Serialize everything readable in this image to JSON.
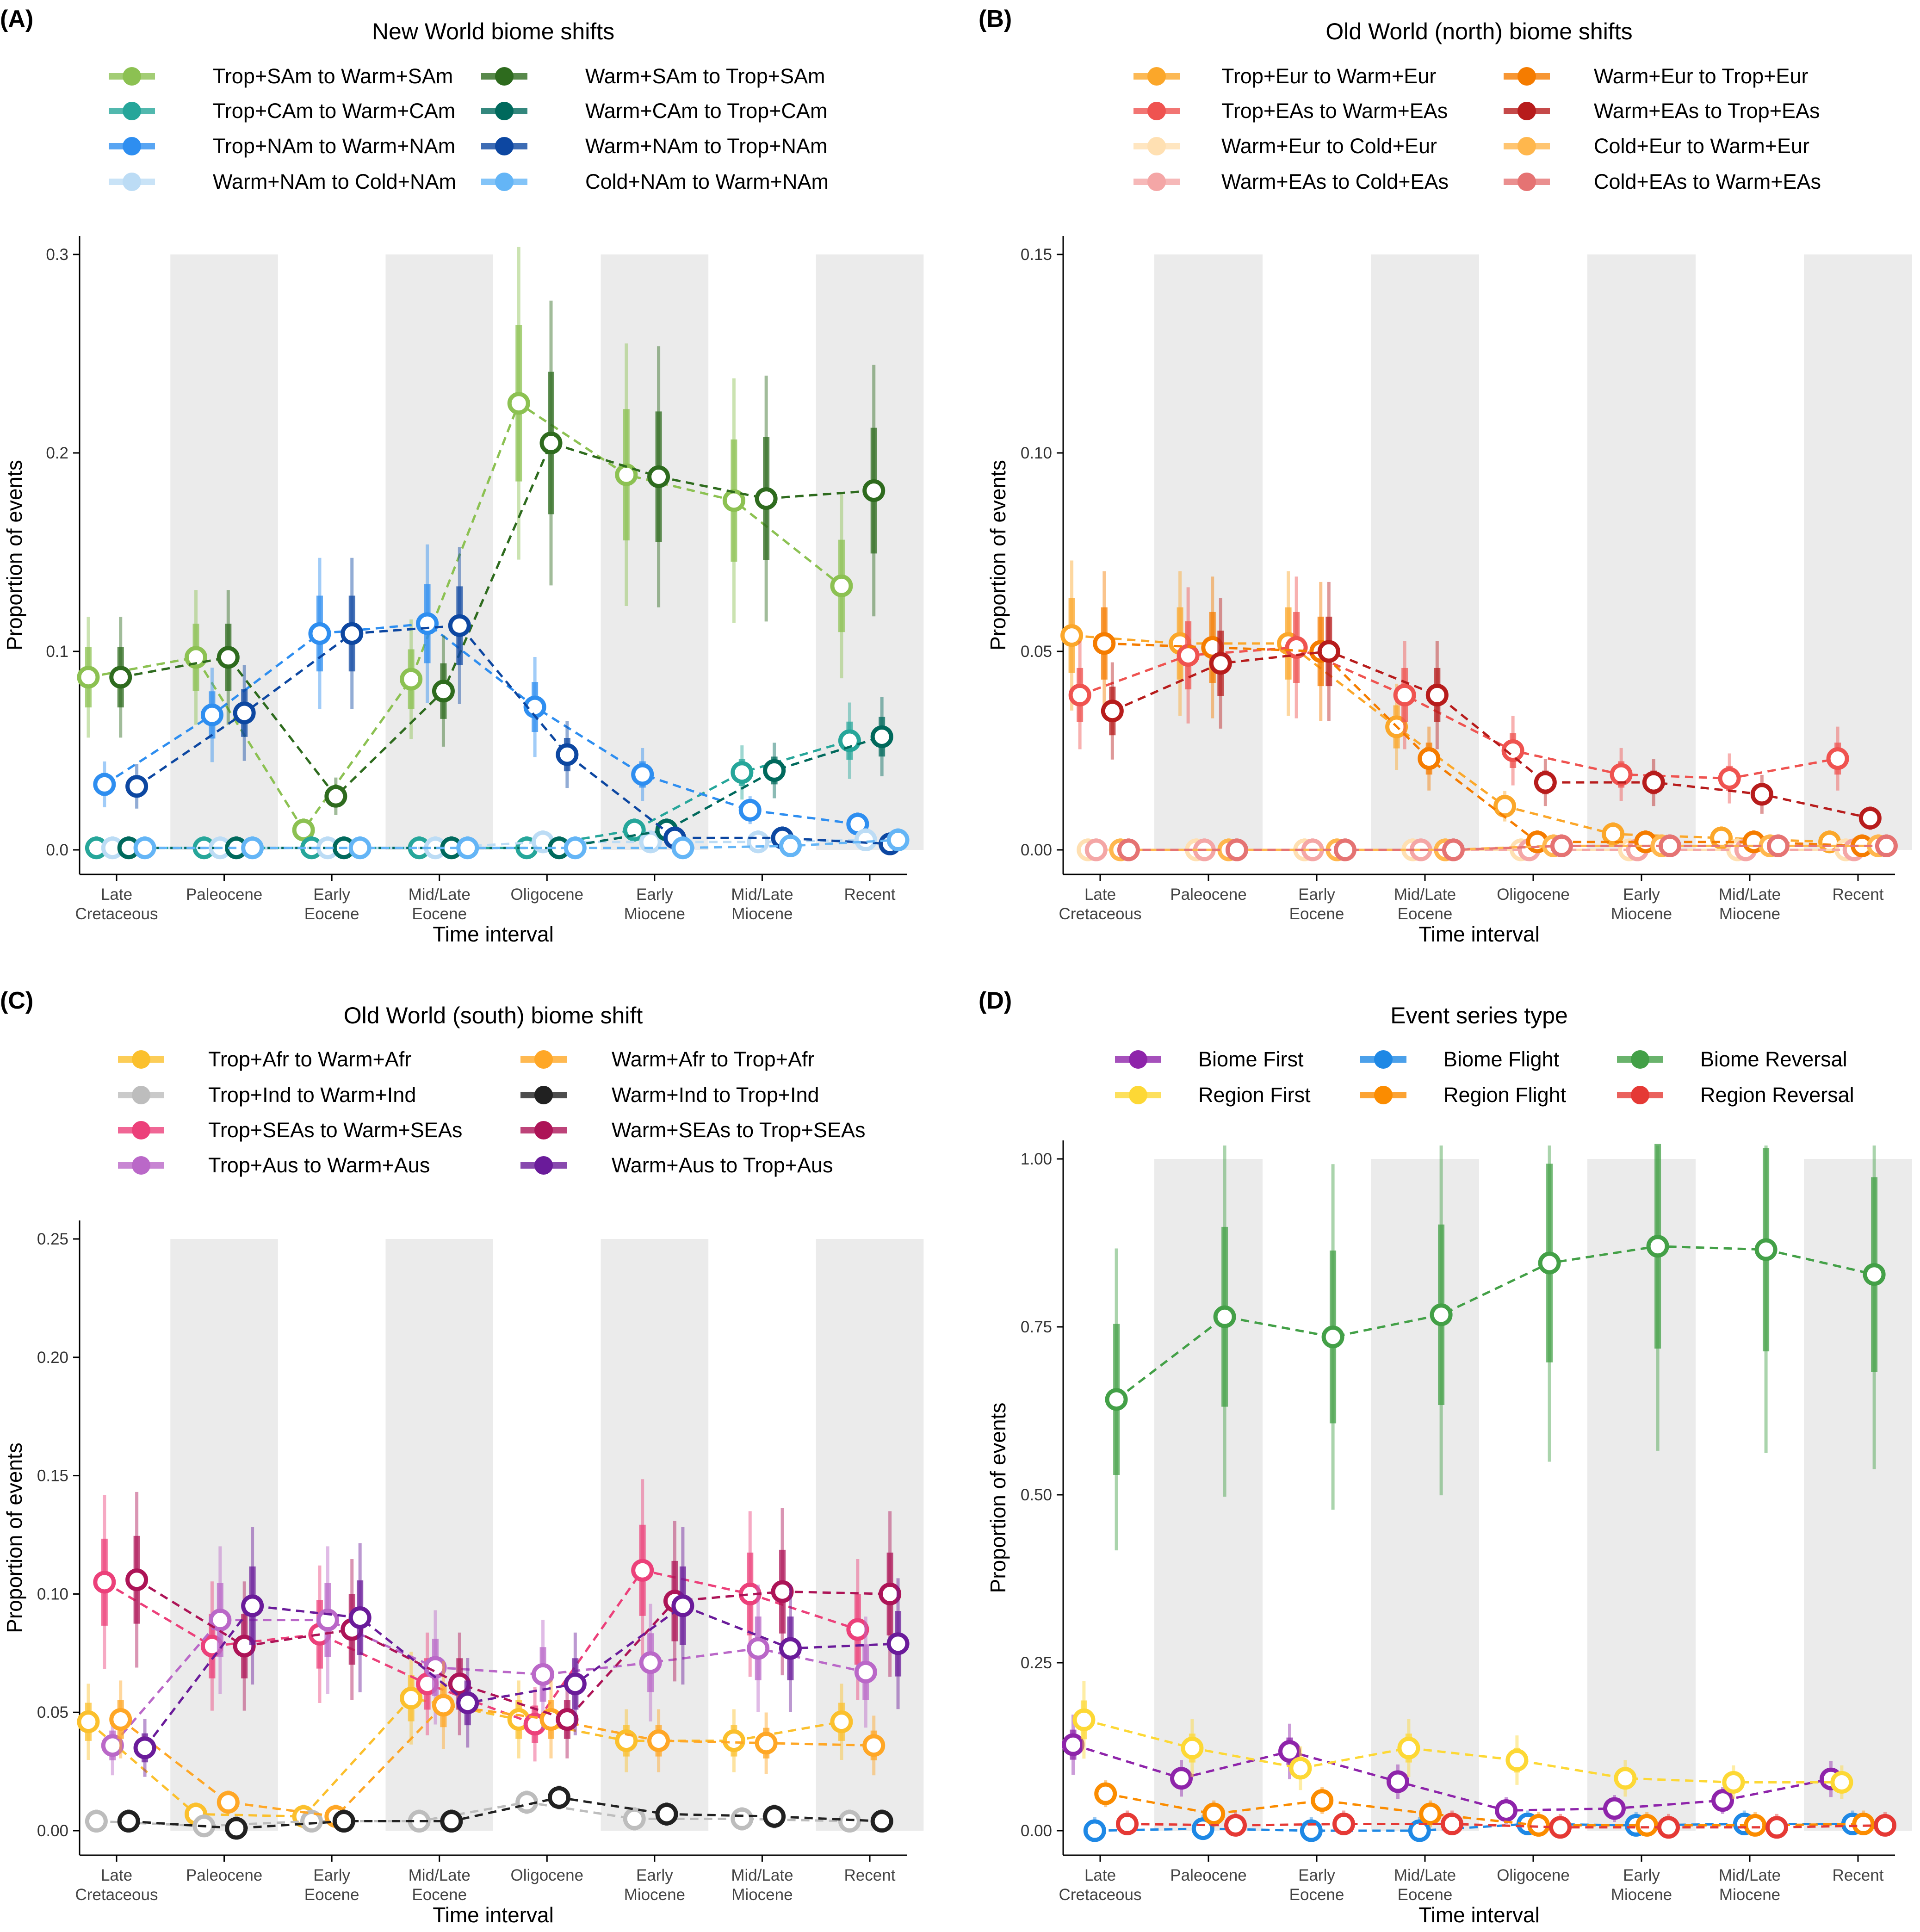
{
  "x_categories": [
    "Late Cretaceous",
    "Paleocene",
    "Early Eocene",
    "Mid/Late Eocene",
    "Oligocene",
    "Early Miocene",
    "Mid/Late Miocene",
    "Recent"
  ],
  "chart_data": [
    {
      "type": "line",
      "panel_label": "(A)",
      "title": "New World biome shifts",
      "xlabel": "Time interval",
      "ylabel": "Proportion of events",
      "ylim": [
        0,
        0.3
      ],
      "yticks": [
        "0.0",
        "0.1",
        "0.2",
        "0.3"
      ],
      "ytick_values": [
        0,
        0.1,
        0.2,
        0.3
      ],
      "legend_columns": 2,
      "categories": [
        "Late\nCretaceous",
        "Paleocene",
        "Early\nEocene",
        "Mid/Late\nEocene",
        "Oligocene",
        "Early\nMiocene",
        "Mid/Late\nMiocene",
        "Recent"
      ],
      "series": [
        {
          "name": "Trop+SAm to Warm+SAm",
          "color": "#8cc152",
          "values": [
            0.087,
            0.097,
            0.01,
            0.086,
            0.225,
            0.189,
            0.176,
            0.133
          ]
        },
        {
          "name": "Trop+CAm to Warm+CAm",
          "color": "#26a69a",
          "values": [
            0.001,
            0.001,
            0.001,
            0.001,
            0.001,
            0.01,
            0.039,
            0.055
          ]
        },
        {
          "name": "Trop+NAm to Warm+NAm",
          "color": "#2e8ef0",
          "values": [
            0.033,
            0.068,
            0.109,
            0.114,
            0.072,
            0.038,
            0.02,
            0.013
          ]
        },
        {
          "name": "Warm+NAm to Cold+NAm",
          "color": "#bcdcf5",
          "values": [
            0.001,
            0.001,
            0.001,
            0.001,
            0.004,
            0.004,
            0.004,
            0.005
          ]
        },
        {
          "name": "Warm+SAm to Trop+SAm",
          "color": "#2e6b1e",
          "values": [
            0.087,
            0.097,
            0.027,
            0.08,
            0.205,
            0.188,
            0.177,
            0.181
          ]
        },
        {
          "name": "Warm+CAm to Trop+CAm",
          "color": "#00695c",
          "values": [
            0.001,
            0.001,
            0.001,
            0.001,
            0.001,
            0.01,
            0.04,
            0.057
          ]
        },
        {
          "name": "Warm+NAm to Trop+NAm",
          "color": "#0d47a1",
          "values": [
            0.032,
            0.069,
            0.109,
            0.113,
            0.048,
            0.006,
            0.006,
            0.003
          ]
        },
        {
          "name": "Cold+NAm to Warm+NAm",
          "color": "#64b5f6",
          "values": [
            0.001,
            0.001,
            0.001,
            0.001,
            0.001,
            0.001,
            0.002,
            0.005
          ]
        }
      ]
    },
    {
      "type": "line",
      "panel_label": "(B)",
      "title": "Old World (north) biome shifts",
      "xlabel": "Time interval",
      "ylabel": "Proportion of events",
      "ylim": [
        0,
        0.15
      ],
      "yticks": [
        "0.00",
        "0.05",
        "0.10",
        "0.15"
      ],
      "ytick_values": [
        0,
        0.05,
        0.1,
        0.15
      ],
      "legend_columns": 2,
      "categories": [
        "Late\nCretaceous",
        "Paleocene",
        "Early\nEocene",
        "Mid/Late\nEocene",
        "Oligocene",
        "Early\nMiocene",
        "Mid/Late\nMiocene",
        "Recent"
      ],
      "series": [
        {
          "name": "Trop+Eur to Warm+Eur",
          "color": "#fba72a",
          "values": [
            0.054,
            0.052,
            0.052,
            0.031,
            0.011,
            0.004,
            0.003,
            0.002
          ]
        },
        {
          "name": "Trop+EAs to Warm+EAs",
          "color": "#ef5350",
          "values": [
            0.039,
            0.049,
            0.051,
            0.039,
            0.025,
            0.019,
            0.018,
            0.023
          ]
        },
        {
          "name": "Warm+Eur to Cold+Eur",
          "color": "#ffe0b2",
          "values": [
            0.0,
            0.0,
            0.0,
            0.0,
            0.0,
            0.0,
            0.0,
            0.0
          ]
        },
        {
          "name": "Warm+EAs to Cold+EAs",
          "color": "#f4a6a6",
          "values": [
            0.0,
            0.0,
            0.0,
            0.0,
            0.0,
            0.0,
            0.0,
            0.0
          ]
        },
        {
          "name": "Warm+Eur to Trop+Eur",
          "color": "#f57c00",
          "values": [
            0.052,
            0.051,
            0.05,
            0.023,
            0.002,
            0.002,
            0.002,
            0.001
          ]
        },
        {
          "name": "Warm+EAs to Trop+EAs",
          "color": "#b71c1c",
          "values": [
            0.035,
            0.047,
            0.05,
            0.039,
            0.017,
            0.017,
            0.014,
            0.008
          ]
        },
        {
          "name": "Cold+Eur to Warm+Eur",
          "color": "#ffb74d",
          "values": [
            0.0,
            0.0,
            0.0,
            0.0,
            0.001,
            0.001,
            0.001,
            0.001
          ]
        },
        {
          "name": "Cold+EAs to Warm+EAs",
          "color": "#e57373",
          "values": [
            0.0,
            0.0,
            0.0,
            0.0,
            0.001,
            0.001,
            0.001,
            0.001
          ]
        }
      ]
    },
    {
      "type": "line",
      "panel_label": "(C)",
      "title": "Old World (south) biome shift",
      "xlabel": "Time interval",
      "ylabel": "Proportion of events",
      "ylim": [
        0,
        0.25
      ],
      "yticks": [
        "0.00",
        "0.05",
        "0.10",
        "0.15",
        "0.20",
        "0.25"
      ],
      "ytick_values": [
        0,
        0.05,
        0.1,
        0.15,
        0.2,
        0.25
      ],
      "legend_columns": 2,
      "categories": [
        "Late\nCretaceous",
        "Paleocene",
        "Early\nEocene",
        "Mid/Late\nEocene",
        "Oligocene",
        "Early\nMiocene",
        "Mid/Late\nMiocene",
        "Recent"
      ],
      "series": [
        {
          "name": "Trop+Afr to Warm+Afr",
          "color": "#fbc02d",
          "values": [
            0.046,
            0.007,
            0.006,
            0.056,
            0.047,
            0.038,
            0.038,
            0.046
          ]
        },
        {
          "name": "Trop+Ind to Warm+Ind",
          "color": "#bdbdbd",
          "values": [
            0.004,
            0.002,
            0.004,
            0.004,
            0.012,
            0.005,
            0.005,
            0.004
          ]
        },
        {
          "name": "Trop+SEAs to Warm+SEAs",
          "color": "#ec407a",
          "values": [
            0.105,
            0.078,
            0.083,
            0.062,
            0.045,
            0.11,
            0.1,
            0.085
          ]
        },
        {
          "name": "Trop+Aus to Warm+Aus",
          "color": "#ba68c8",
          "values": [
            0.036,
            0.089,
            0.089,
            0.069,
            0.066,
            0.071,
            0.077,
            0.067
          ]
        },
        {
          "name": "Warm+Afr to Trop+Afr",
          "color": "#ffa726",
          "values": [
            0.047,
            0.012,
            0.006,
            0.053,
            0.047,
            0.038,
            0.037,
            0.036
          ]
        },
        {
          "name": "Warm+Ind to Trop+Ind",
          "color": "#212121",
          "values": [
            0.004,
            0.001,
            0.004,
            0.004,
            0.014,
            0.007,
            0.006,
            0.004
          ]
        },
        {
          "name": "Warm+SEAs to Trop+SEAs",
          "color": "#ad1457",
          "values": [
            0.106,
            0.078,
            0.085,
            0.062,
            0.047,
            0.097,
            0.101,
            0.1
          ]
        },
        {
          "name": "Warm+Aus to Trop+Aus",
          "color": "#6a1b9a",
          "values": [
            0.035,
            0.095,
            0.09,
            0.054,
            0.062,
            0.095,
            0.077,
            0.079
          ]
        }
      ]
    },
    {
      "type": "line",
      "panel_label": "(D)",
      "title": "Event series type",
      "xlabel": "Time interval",
      "ylabel": "Proportion of events",
      "ylim": [
        0,
        1.0
      ],
      "yticks": [
        "0.00",
        "0.25",
        "0.50",
        "0.75",
        "1.00"
      ],
      "ytick_values": [
        0,
        0.25,
        0.5,
        0.75,
        1.0
      ],
      "legend_columns": 3,
      "categories": [
        "Late\nCretaceous",
        "Paleocene",
        "Early\nEocene",
        "Mid/Late\nEocene",
        "Oligocene",
        "Early\nMiocene",
        "Mid/Late\nMiocene",
        "Recent"
      ],
      "series": [
        {
          "name": "Biome First",
          "color": "#8e24aa",
          "values": [
            0.128,
            0.078,
            0.118,
            0.073,
            0.03,
            0.033,
            0.045,
            0.077
          ]
        },
        {
          "name": "Region First",
          "color": "#fdd835",
          "values": [
            0.165,
            0.123,
            0.093,
            0.123,
            0.105,
            0.078,
            0.072,
            0.072
          ]
        },
        {
          "name": "Biome Flight",
          "color": "#1e88e5",
          "values": [
            0.0,
            0.003,
            0.0,
            0.0,
            0.01,
            0.008,
            0.01,
            0.01
          ]
        },
        {
          "name": "Region Flight",
          "color": "#fb8c00",
          "values": [
            0.055,
            0.025,
            0.045,
            0.025,
            0.008,
            0.008,
            0.008,
            0.01
          ]
        },
        {
          "name": "Biome Reversal",
          "color": "#43a047",
          "values": [
            0.642,
            0.765,
            0.735,
            0.768,
            0.845,
            0.87,
            0.865,
            0.828
          ]
        },
        {
          "name": "Region Reversal",
          "color": "#e53935",
          "values": [
            0.01,
            0.008,
            0.01,
            0.01,
            0.005,
            0.005,
            0.005,
            0.008
          ]
        }
      ]
    }
  ]
}
